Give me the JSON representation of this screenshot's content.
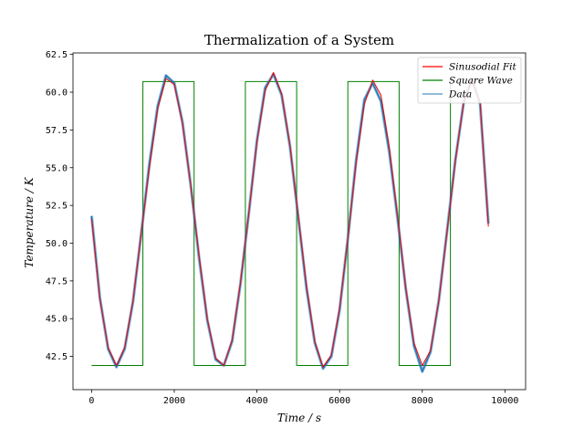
{
  "chart_data": {
    "type": "line",
    "title": "Thermalization of a System",
    "xlabel": "Time / s",
    "ylabel": "Temperature / K",
    "xlim": [
      -450,
      10500
    ],
    "ylim": [
      40.3,
      62.6
    ],
    "x_ticks": [
      0,
      2000,
      4000,
      6000,
      8000,
      10000
    ],
    "x_tick_labels": [
      "0",
      "2000",
      "4000",
      "6000",
      "8000",
      "10000"
    ],
    "y_ticks": [
      42.5,
      45.0,
      47.5,
      50.0,
      52.5,
      55.0,
      57.5,
      60.0,
      62.5
    ],
    "y_tick_labels": [
      "42.5",
      "45.0",
      "47.5",
      "50.0",
      "52.5",
      "55.0",
      "57.5",
      "60.0",
      "62.5"
    ],
    "grid": false,
    "legend_position": "top-right",
    "series": [
      {
        "name": "Sinusodial Fit",
        "color": "#ff0000",
        "style": "line",
        "x": [
          0,
          200,
          400,
          600,
          800,
          1000,
          1200,
          1400,
          1600,
          1800,
          2000,
          2200,
          2400,
          2600,
          2800,
          3000,
          3200,
          3400,
          3600,
          3800,
          4000,
          4200,
          4400,
          4600,
          4800,
          5000,
          5200,
          5400,
          5600,
          5800,
          6000,
          6200,
          6400,
          6600,
          6800,
          7000,
          7200,
          7400,
          7600,
          7800,
          8000,
          8200,
          8400,
          8600,
          8800,
          9000,
          9200,
          9400,
          9600
        ],
        "y": [
          51.6,
          46.3,
          43.1,
          41.9,
          43.1,
          46.2,
          50.6,
          55.0,
          58.9,
          60.9,
          60.5,
          57.9,
          53.8,
          49.2,
          45.0,
          42.4,
          41.9,
          43.6,
          47.4,
          51.9,
          56.7,
          60.1,
          61.3,
          59.9,
          56.5,
          51.8,
          47.2,
          43.5,
          41.8,
          42.6,
          45.7,
          50.3,
          55.3,
          59.2,
          60.8,
          59.8,
          56.4,
          51.9,
          47.1,
          43.4,
          41.9,
          42.9,
          46.2,
          50.7,
          55.4,
          59.3,
          60.8,
          59.3,
          51.1
        ]
      },
      {
        "name": "Square Wave",
        "color": "#008000",
        "style": "step",
        "x": [
          0,
          1240,
          1240,
          2480,
          2480,
          3720,
          3720,
          4960,
          4960,
          6200,
          6200,
          7440,
          7440,
          8680,
          8680
        ],
        "y": [
          41.9,
          41.9,
          60.7,
          60.7,
          41.9,
          41.9,
          60.7,
          60.7,
          41.9,
          41.9,
          60.7,
          60.7,
          41.9,
          41.9,
          60.7
        ]
      },
      {
        "name": "Data",
        "color": "#1f77b4",
        "style": "line",
        "x": [
          0,
          200,
          400,
          600,
          800,
          1000,
          1200,
          1400,
          1600,
          1800,
          2000,
          2200,
          2400,
          2600,
          2800,
          3000,
          3200,
          3400,
          3600,
          3800,
          4000,
          4200,
          4400,
          4600,
          4800,
          5000,
          5200,
          5400,
          5600,
          5800,
          6000,
          6200,
          6400,
          6600,
          6800,
          7000,
          7200,
          7400,
          7600,
          7800,
          8000,
          8200,
          8400,
          8600,
          8800,
          9000,
          9200,
          9400,
          9600
        ],
        "y": [
          51.8,
          46.4,
          43.0,
          41.8,
          43.0,
          46.1,
          50.6,
          55.3,
          59.1,
          61.1,
          60.6,
          58.0,
          53.8,
          49.0,
          44.9,
          42.3,
          41.9,
          43.5,
          47.3,
          51.9,
          56.8,
          60.3,
          61.2,
          59.8,
          56.4,
          51.7,
          47.0,
          43.4,
          41.7,
          42.5,
          45.6,
          50.3,
          55.5,
          59.5,
          60.6,
          59.4,
          56.1,
          51.7,
          47.0,
          43.2,
          41.5,
          42.8,
          46.2,
          50.8,
          55.5,
          59.3,
          60.9,
          59.2,
          51.3
        ]
      }
    ]
  }
}
